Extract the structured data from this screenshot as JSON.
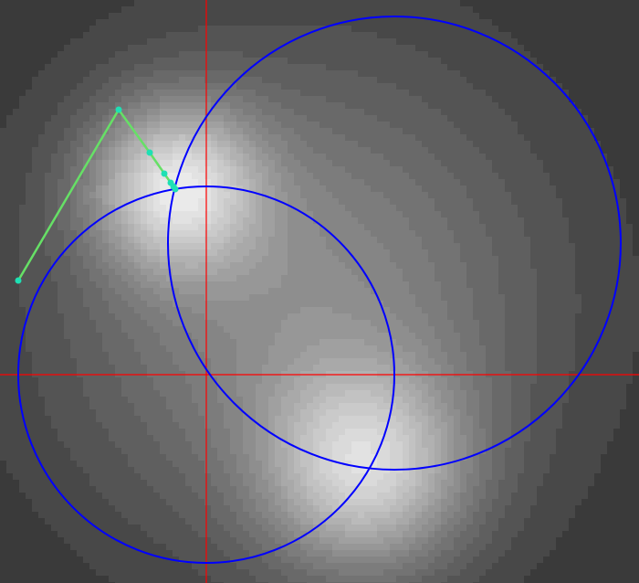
{
  "colors": {
    "axes": "#ff0000",
    "circles": "#0000ff",
    "path_line": "#66e066",
    "path_points": "#1ee0b4",
    "field_light": "#f2f2f2",
    "field_dark": "#3a3a3a"
  },
  "axes": {
    "x": 226,
    "y": 410
  },
  "field": {
    "levels": 20,
    "peaks": [
      {
        "x": 193,
        "y": 205,
        "amp": 1.0,
        "sigma": 62
      },
      {
        "x": 400,
        "y": 512,
        "amp": 0.9,
        "sigma": 75
      },
      {
        "x": 330,
        "y": 330,
        "amp": 0.55,
        "sigma": 180
      }
    ]
  },
  "circles": [
    {
      "name": "circle-upper-right",
      "cx": 432,
      "cy": 266,
      "r": 248
    },
    {
      "name": "circle-lower-left",
      "cx": 226,
      "cy": 410,
      "r": 206
    }
  ],
  "path": {
    "points": [
      {
        "x": 20,
        "y": 307
      },
      {
        "x": 130,
        "y": 120
      },
      {
        "x": 164,
        "y": 167
      },
      {
        "x": 180,
        "y": 190
      },
      {
        "x": 187,
        "y": 200
      },
      {
        "x": 190,
        "y": 204
      },
      {
        "x": 192,
        "y": 207
      }
    ]
  }
}
